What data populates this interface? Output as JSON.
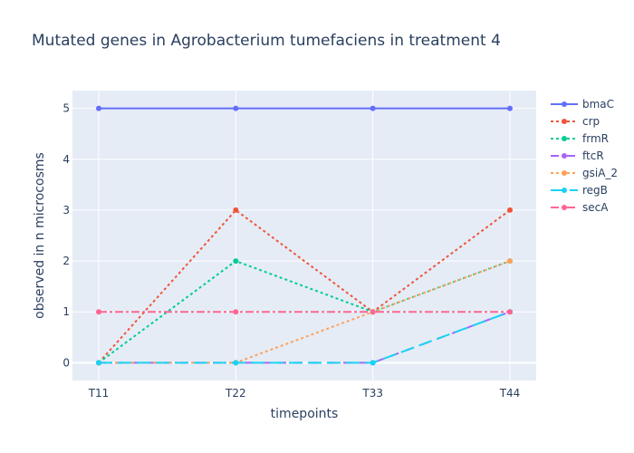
{
  "chart_data": {
    "type": "line",
    "title": "Mutated genes in Agrobacterium tumefaciens in treatment 4",
    "xlabel": "timepoints",
    "ylabel": "observed in n microcosms",
    "categories": [
      "T11",
      "T22",
      "T33",
      "T44"
    ],
    "ylim": [
      -0.35,
      5.35
    ],
    "yticks": [
      0,
      1,
      2,
      3,
      4,
      5
    ],
    "grid": true,
    "legend_position": "right",
    "plot_background": "#e5ecf6",
    "series": [
      {
        "name": "bmaC",
        "values": [
          5,
          5,
          5,
          5
        ],
        "color": "#636efa",
        "dash": "solid"
      },
      {
        "name": "crp",
        "values": [
          0,
          3,
          1,
          3
        ],
        "color": "#ef553b",
        "dash": "dot"
      },
      {
        "name": "frmR",
        "values": [
          0,
          2,
          1,
          2
        ],
        "color": "#00cc96",
        "dash": "dot"
      },
      {
        "name": "ftcR",
        "values": [
          0,
          0,
          0,
          1
        ],
        "color": "#ab63fa",
        "dash": "dash"
      },
      {
        "name": "gsiA_2",
        "values": [
          0,
          0,
          1,
          2
        ],
        "color": "#ffa15a",
        "dash": "dot"
      },
      {
        "name": "regB",
        "values": [
          0,
          0,
          0,
          1
        ],
        "color": "#19d3f3",
        "dash": "longdash"
      },
      {
        "name": "secA",
        "values": [
          1,
          1,
          1,
          1
        ],
        "color": "#ff6692",
        "dash": "dashdot"
      }
    ]
  }
}
